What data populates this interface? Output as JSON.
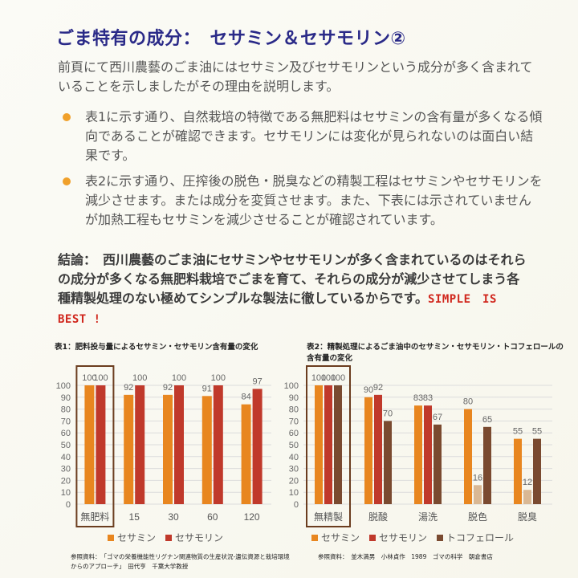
{
  "title": "ごま特有の成分：　セサミン＆セサモリン②",
  "intro": "前頁にて西川農藝のごま油にはセサミン及びセサモリンという成分が多く含まれていることを示しましたがその理由を説明します。",
  "bullets": [
    "表1に示す通り、自然栽培の特徴である無肥料はセサミンの含有量が多くなる傾向であることが確認できます。セサモリンには変化が見られないのは面白い結果です。",
    "表2に示す通り、圧搾後の脱色・脱臭などの精製工程はセサミンやセサモリンを減少させます。または成分を変質させます。また、下表には示されていませんが加熱工程もセサミンを減少させることが確認されています。"
  ],
  "conclusion": {
    "text": "結論：　西川農藝のごま油にセサミンやセサモリンが多く含まれているのはそれらの成分が多くなる無肥料栽培でごまを育て、それらの成分が減少させてしまう各種精製処理のない極めてシンプルな製法に徹しているからです。",
    "emphasis": "SIMPLE　IS　BEST !"
  },
  "colors": {
    "title": "#2a2a88",
    "bullet": "#f0a02a",
    "sesamin": "#e8861f",
    "sesamolin": "#c0392b",
    "tocopherol": "#7a4a30",
    "tocopherol_low": "#d9b894",
    "highlight_box": "#6b3d1f",
    "emphasis": "#d0261c"
  },
  "chart_data": [
    {
      "type": "bar",
      "title": "表1：肥料投与量によるセサミン・セサモリン含有量の変化",
      "categories": [
        "無肥料",
        "15",
        "30",
        "60",
        "120"
      ],
      "series": [
        {
          "name": "セサミン",
          "values": [
            100,
            92,
            92,
            91,
            84
          ]
        },
        {
          "name": "セサモリン",
          "values": [
            100,
            100,
            100,
            100,
            97
          ]
        }
      ],
      "ylim": [
        0,
        100
      ],
      "yticks": [
        "0",
        "10",
        "20",
        "30",
        "40",
        "50",
        "60",
        "70",
        "80",
        "90",
        "100"
      ],
      "highlight_category": "無肥料",
      "legend": "bottom",
      "reference": "参照資料：　「ゴマの栄養機能性リグナン関連物質の生産状況-遺伝資源と栽培環境からのアプローチ」　田代亨　千葉大学教授"
    },
    {
      "type": "bar",
      "title": "表2：精製処理によるごま油中のセサミン・セサモリン・トコフェロールの含有量の変化",
      "categories": [
        "無精製",
        "脱酸",
        "湯洗",
        "脱色",
        "脱臭"
      ],
      "series": [
        {
          "name": "セサミン",
          "values": [
            100,
            90,
            83,
            80,
            55
          ]
        },
        {
          "name": "セサモリン",
          "values": [
            100,
            92,
            83,
            16,
            12
          ]
        },
        {
          "name": "トコフェロール",
          "values": [
            100,
            70,
            67,
            65,
            55
          ]
        }
      ],
      "ylim": [
        0,
        100
      ],
      "yticks": [
        "0",
        "10",
        "20",
        "30",
        "40",
        "50",
        "60",
        "70",
        "80",
        "90",
        "100"
      ],
      "highlight_category": "無精製",
      "legend": "bottom",
      "reference": "参照資料：　並木満男　小林貞作　1989　ゴマの科学　朝倉書店"
    }
  ]
}
